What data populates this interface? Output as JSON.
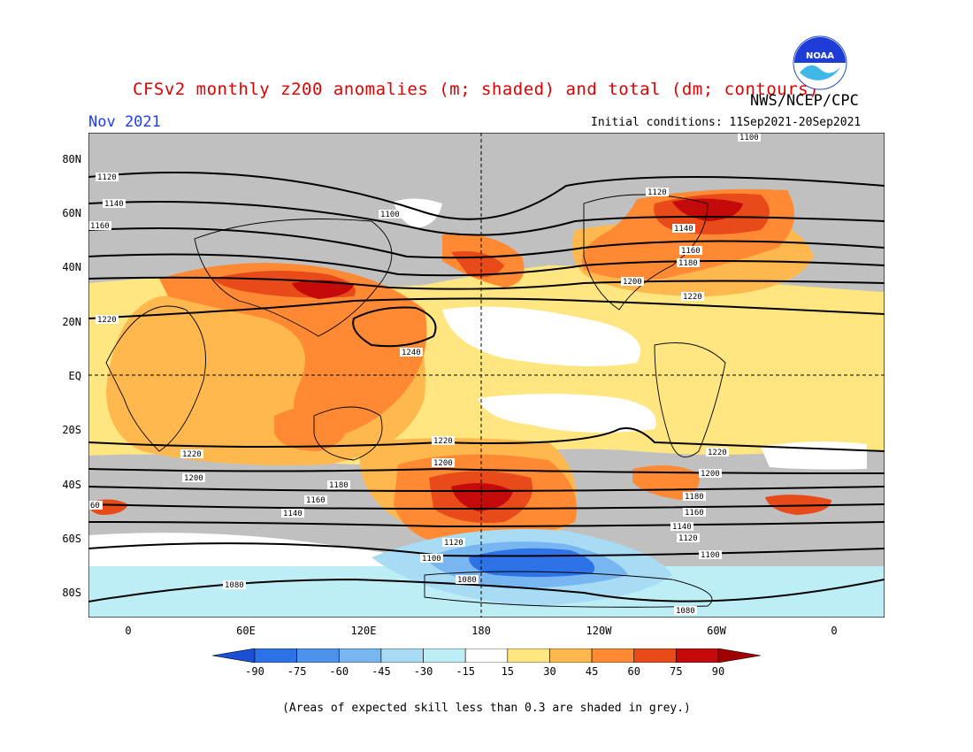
{
  "header": {
    "title": "CFSv2 monthly z200 anomalies (m; shaded) and total (dm; contours)",
    "agency": "NWS/NCEP/CPC",
    "month": "Nov 2021",
    "initial_conditions": "Initial conditions: 11Sep2021-20Sep2021",
    "logo_text": "NOAA"
  },
  "axes": {
    "lat_labels": [
      "80N",
      "60N",
      "40N",
      "20N",
      "EQ",
      "20S",
      "40S",
      "60S",
      "80S"
    ],
    "lon_labels": [
      "0",
      "60E",
      "120E",
      "180",
      "120W",
      "60W",
      "0"
    ]
  },
  "colorbar": {
    "labels": [
      "-90",
      "-75",
      "-60",
      "-45",
      "-30",
      "-15",
      "15",
      "30",
      "45",
      "60",
      "75",
      "90"
    ],
    "colors": [
      "#1a50d6",
      "#2d72e6",
      "#4d92ec",
      "#78b6f2",
      "#a8dcf5",
      "#bdeef6",
      "#ffffff",
      "#ffe680",
      "#ffb84d",
      "#ff8a33",
      "#e84a1a",
      "#c40a0a",
      "#a00000"
    ]
  },
  "map_colors": {
    "grey": "#c0c0c0",
    "ocean_base": "#ffe680",
    "land_outline": "#000000"
  },
  "contour_labels": [
    "1100",
    "1120",
    "1140",
    "1160",
    "1200",
    "1220",
    "1240",
    "1080",
    "1180",
    "60"
  ],
  "footnote": "(Areas of expected skill less than 0.3 are shaded in grey.)"
}
